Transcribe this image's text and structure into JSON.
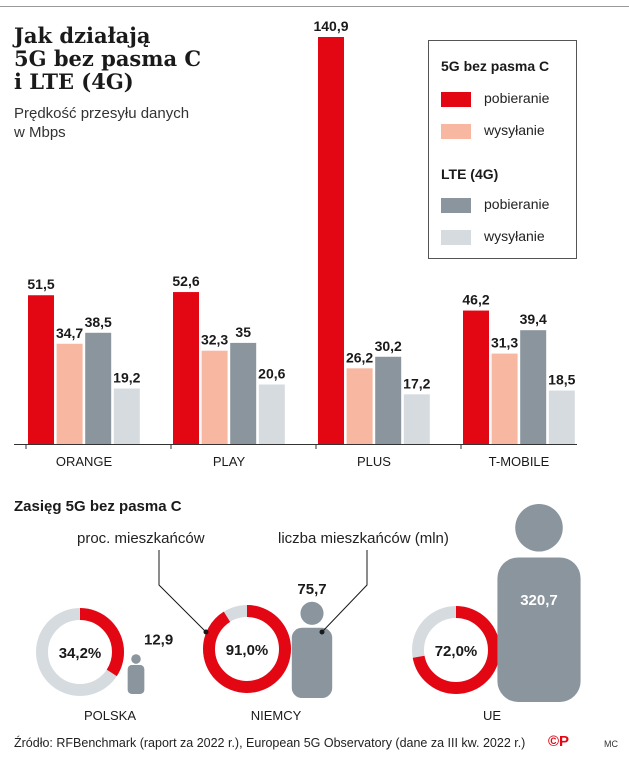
{
  "title_lines": [
    "Jak działają",
    "5G bez pasma C",
    "i LTE (4G)"
  ],
  "subtitle": "Prędkość przesyłu danych w Mbps",
  "legend": {
    "group1_title": "5G bez pasma C",
    "group1_items": [
      "pobieranie",
      "wysyłanie"
    ],
    "group2_title": "LTE (4G)",
    "group2_items": [
      "pobieranie",
      "wysyłanie"
    ]
  },
  "colors": {
    "g5_download": "#e30613",
    "g5_upload": "#f8b7a0",
    "lte_download": "#8a959e",
    "lte_upload": "#d6dbe0",
    "ring_bg": "#d6dbe0",
    "ring_fg": "#e30613",
    "person": "#8a959e"
  },
  "chart_data": [
    {
      "type": "bar",
      "categories": [
        "ORANGE",
        "PLAY",
        "PLUS",
        "T-MOBILE"
      ],
      "series": [
        {
          "name": "5G bez pasma C — pobieranie",
          "values": [
            51.5,
            52.6,
            140.9,
            46.2
          ],
          "labels": [
            "51,5",
            "52,6",
            "140,9",
            "46,2"
          ]
        },
        {
          "name": "5G bez pasma C — wysyłanie",
          "values": [
            34.7,
            32.3,
            26.2,
            31.3
          ],
          "labels": [
            "34,7",
            "32,3",
            "26,2",
            "31,3"
          ]
        },
        {
          "name": "LTE (4G) — pobieranie",
          "values": [
            38.5,
            35,
            30.2,
            39.4
          ],
          "labels": [
            "38,5",
            "35",
            "30,2",
            "39,4"
          ]
        },
        {
          "name": "LTE (4G) — wysyłanie",
          "values": [
            19.2,
            20.6,
            17.2,
            18.5
          ],
          "labels": [
            "19,2",
            "20,6",
            "17,2",
            "18,5"
          ]
        }
      ],
      "ylabel": "Prędkość przesyłu danych w Mbps"
    },
    {
      "type": "pie",
      "title": "Zasięg 5G bez pasma C",
      "callout_labels": [
        "proc. mieszkańców",
        "liczba mieszkańców (mln)"
      ],
      "countries": [
        {
          "name": "POLSKA",
          "coverage_pct": 34.2,
          "coverage_label": "34,2%",
          "population_mln": 12.9,
          "population_label": "12,9"
        },
        {
          "name": "NIEMCY",
          "coverage_pct": 91.0,
          "coverage_label": "91,0%",
          "population_mln": 75.7,
          "population_label": "75,7"
        },
        {
          "name": "UE",
          "coverage_pct": 72.0,
          "coverage_label": "72,0%",
          "population_mln": 320.7,
          "population_label": "320,7"
        }
      ]
    }
  ],
  "footer": "Źródło: RFBenchmark (raport za 2022 r.),  European 5G Observatory (dane za III kw. 2022 r.)",
  "logo_text": "©P",
  "author": "MC"
}
